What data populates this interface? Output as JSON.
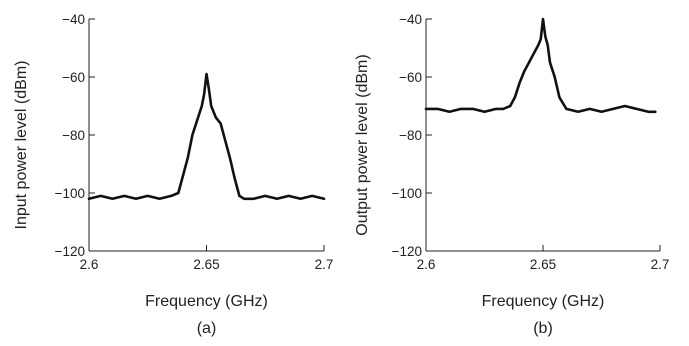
{
  "chart_data": [
    {
      "type": "line",
      "panel_label": "(a)",
      "xlabel": "Frequency (GHz)",
      "ylabel": "Input power level (dBm)",
      "xlim": [
        2.6,
        2.7
      ],
      "ylim": [
        -120,
        -40
      ],
      "xticks": [
        2.6,
        2.65,
        2.7
      ],
      "xtick_labels": [
        "2.6",
        "2.65",
        "2.7"
      ],
      "yticks": [
        -120,
        -100,
        -80,
        -60,
        -40
      ],
      "ytick_labels": [
        "−120",
        "−100",
        "−80",
        "−60",
        "−40"
      ],
      "grid": false,
      "series": [
        {
          "x": [
            2.6,
            2.605,
            2.61,
            2.615,
            2.62,
            2.625,
            2.63,
            2.635,
            2.638,
            2.64,
            2.642,
            2.644,
            2.646,
            2.648,
            2.649,
            2.65,
            2.651,
            2.652,
            2.654,
            2.656,
            2.658,
            2.66,
            2.662,
            2.664,
            2.666,
            2.67,
            2.675,
            2.68,
            2.685,
            2.69,
            2.695,
            2.7
          ],
          "y": [
            -102,
            -101,
            -102,
            -101,
            -102,
            -101,
            -102,
            -101,
            -100,
            -94,
            -88,
            -80,
            -75,
            -70,
            -66,
            -59,
            -64,
            -70,
            -74,
            -76,
            -82,
            -88,
            -95,
            -101,
            -102,
            -102,
            -101,
            -102,
            -101,
            -102,
            -101,
            -102
          ]
        }
      ]
    },
    {
      "type": "line",
      "panel_label": "(b)",
      "xlabel": "Frequency (GHz)",
      "ylabel": "Output power level (dBm)",
      "xlim": [
        2.6,
        2.7
      ],
      "ylim": [
        -120,
        -40
      ],
      "xticks": [
        2.6,
        2.65,
        2.7
      ],
      "xtick_labels": [
        "2.6",
        "2.65",
        "2.7"
      ],
      "yticks": [
        -120,
        -100,
        -80,
        -60,
        -40
      ],
      "ytick_labels": [
        "−120",
        "−100",
        "−80",
        "−60",
        "−40"
      ],
      "grid": false,
      "series": [
        {
          "x": [
            2.6,
            2.605,
            2.61,
            2.615,
            2.62,
            2.625,
            2.63,
            2.633,
            2.636,
            2.638,
            2.64,
            2.642,
            2.644,
            2.646,
            2.648,
            2.649,
            2.65,
            2.651,
            2.652,
            2.653,
            2.655,
            2.657,
            2.66,
            2.665,
            2.67,
            2.675,
            2.68,
            2.685,
            2.69,
            2.695,
            2.698
          ],
          "y": [
            -71,
            -71,
            -72,
            -71,
            -71,
            -72,
            -71,
            -71,
            -70,
            -67,
            -62,
            -58,
            -55,
            -52,
            -49,
            -47,
            -40,
            -46,
            -49,
            -55,
            -60,
            -67,
            -71,
            -72,
            -71,
            -72,
            -71,
            -70,
            -71,
            -72,
            -72
          ]
        }
      ]
    }
  ]
}
